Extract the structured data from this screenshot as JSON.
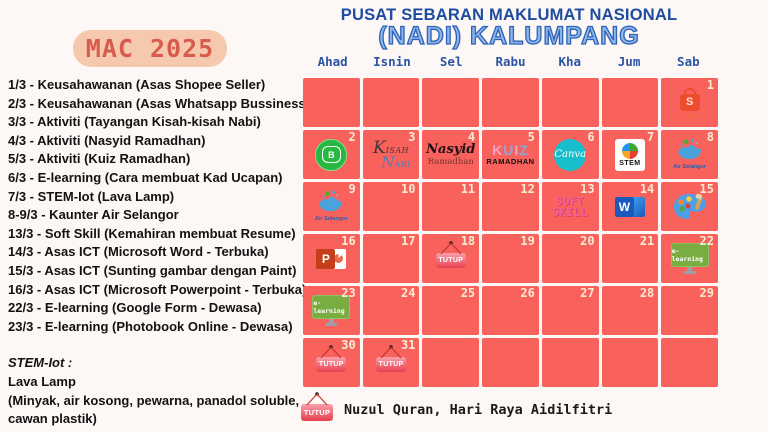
{
  "month_badge": "MAC 2025",
  "header": {
    "title_line1": "PUSAT SEBARAN MAKLUMAT NASIONAL",
    "title_line2": "(NADI) KALUMPANG"
  },
  "events": [
    "1/3 - Keusahawanan (Asas Shopee Seller)",
    "2/3 - Keusahawanan (Asas Whatsapp Bussiness)",
    "3/3 - Aktiviti (Tayangan Kisah-kisah Nabi)",
    "4/3 - Aktiviti (Nasyid Ramadhan)",
    "5/3 - Aktiviti (Kuiz Ramadhan)",
    "6/3 - E-learning (Cara membuat Kad Ucapan)",
    "7/3 - STEM-Iot (Lava Lamp)",
    "8-9/3 - Kaunter Air Selangor",
    "13/3 - Soft Skill (Kemahiran membuat Resume)",
    "14/3 - Asas ICT (Microsoft Word - Terbuka)",
    "15/3 - Asas ICT (Sunting gambar dengan Paint)",
    "16/3 - Asas ICT (Microsoft Powerpoint - Terbuka)",
    "22/3 - E-learning (Google Form - Dewasa)",
    "23/3 - E-learning (Photobook Online - Dewasa)"
  ],
  "note": {
    "title": "STEM-Iot :",
    "lines": [
      "Lava Lamp",
      "(Minyak, air kosong, pewarna, panadol soluble,",
      "cawan plastik)"
    ]
  },
  "calendar": {
    "weekdays": [
      "Ahad",
      "Isnin",
      "Sel",
      "Rabu",
      "Kha",
      "Jum",
      "Sab"
    ],
    "weeks": [
      [
        {},
        {},
        {},
        {},
        {},
        {},
        {
          "day": 1,
          "icon": "shopee"
        }
      ],
      [
        {
          "day": 2,
          "icon": "whatsapp-business"
        },
        {
          "day": 3,
          "icon": "kisah-nabi"
        },
        {
          "day": 4,
          "icon": "nasyid-ramadhan"
        },
        {
          "day": 5,
          "icon": "kuiz-ramadhan"
        },
        {
          "day": 6,
          "icon": "canva"
        },
        {
          "day": 7,
          "icon": "stem"
        },
        {
          "day": 8,
          "icon": "air-selangor"
        }
      ],
      [
        {
          "day": 9,
          "icon": "air-selangor"
        },
        {
          "day": 10
        },
        {
          "day": 11
        },
        {
          "day": 12
        },
        {
          "day": 13,
          "icon": "soft-skill"
        },
        {
          "day": 14,
          "icon": "ms-word"
        },
        {
          "day": 15,
          "icon": "paint-palette"
        }
      ],
      [
        {
          "day": 16,
          "icon": "ms-powerpoint"
        },
        {
          "day": 17
        },
        {
          "day": 18,
          "icon": "tutup"
        },
        {
          "day": 19
        },
        {
          "day": 20
        },
        {
          "day": 21
        },
        {
          "day": 22,
          "icon": "e-learning"
        }
      ],
      [
        {
          "day": 23,
          "icon": "e-learning"
        },
        {
          "day": 24
        },
        {
          "day": 25
        },
        {
          "day": 26
        },
        {
          "day": 27
        },
        {
          "day": 28
        },
        {
          "day": 29
        }
      ],
      [
        {
          "day": 30,
          "icon": "tutup"
        },
        {
          "day": 31,
          "icon": "tutup"
        },
        {},
        {},
        {},
        {},
        {}
      ]
    ]
  },
  "icons": {
    "shopee": {
      "initial": "S",
      "label": "Shopee"
    },
    "whatsapp-business": {
      "letter": "B"
    },
    "kisah-nabi": {
      "line1": "Kisah",
      "line2": "Nabi"
    },
    "nasyid-ramadhan": {
      "line1": "Nasyid",
      "line2": "Ramadhan"
    },
    "kuiz-ramadhan": {
      "line1": "KUIZ",
      "line2": "RAMADHAN"
    },
    "canva": {
      "label": "Canva"
    },
    "stem": {
      "label": "STEM"
    },
    "air-selangor": {
      "label": "Air Selangor"
    },
    "soft-skill": {
      "line1": "SOFT",
      "line2": "SKILL"
    },
    "ms-word": {
      "letter": "W"
    },
    "ms-powerpoint": {
      "letter": "P"
    },
    "tutup": {
      "label": "TUTUP"
    },
    "e-learning": {
      "label": "e-learning"
    }
  },
  "legend": {
    "icon": "tutup",
    "text": "Nuzul Quran, Hari Raya Aidilfitri"
  },
  "colors": {
    "cell": "#F9615C",
    "day_number": "#F6ECD4",
    "title_blue": "#1D4CA0",
    "badge_bg": "#F6C9AF",
    "badge_text": "#D85C4B",
    "background": "#FDF8F6"
  }
}
